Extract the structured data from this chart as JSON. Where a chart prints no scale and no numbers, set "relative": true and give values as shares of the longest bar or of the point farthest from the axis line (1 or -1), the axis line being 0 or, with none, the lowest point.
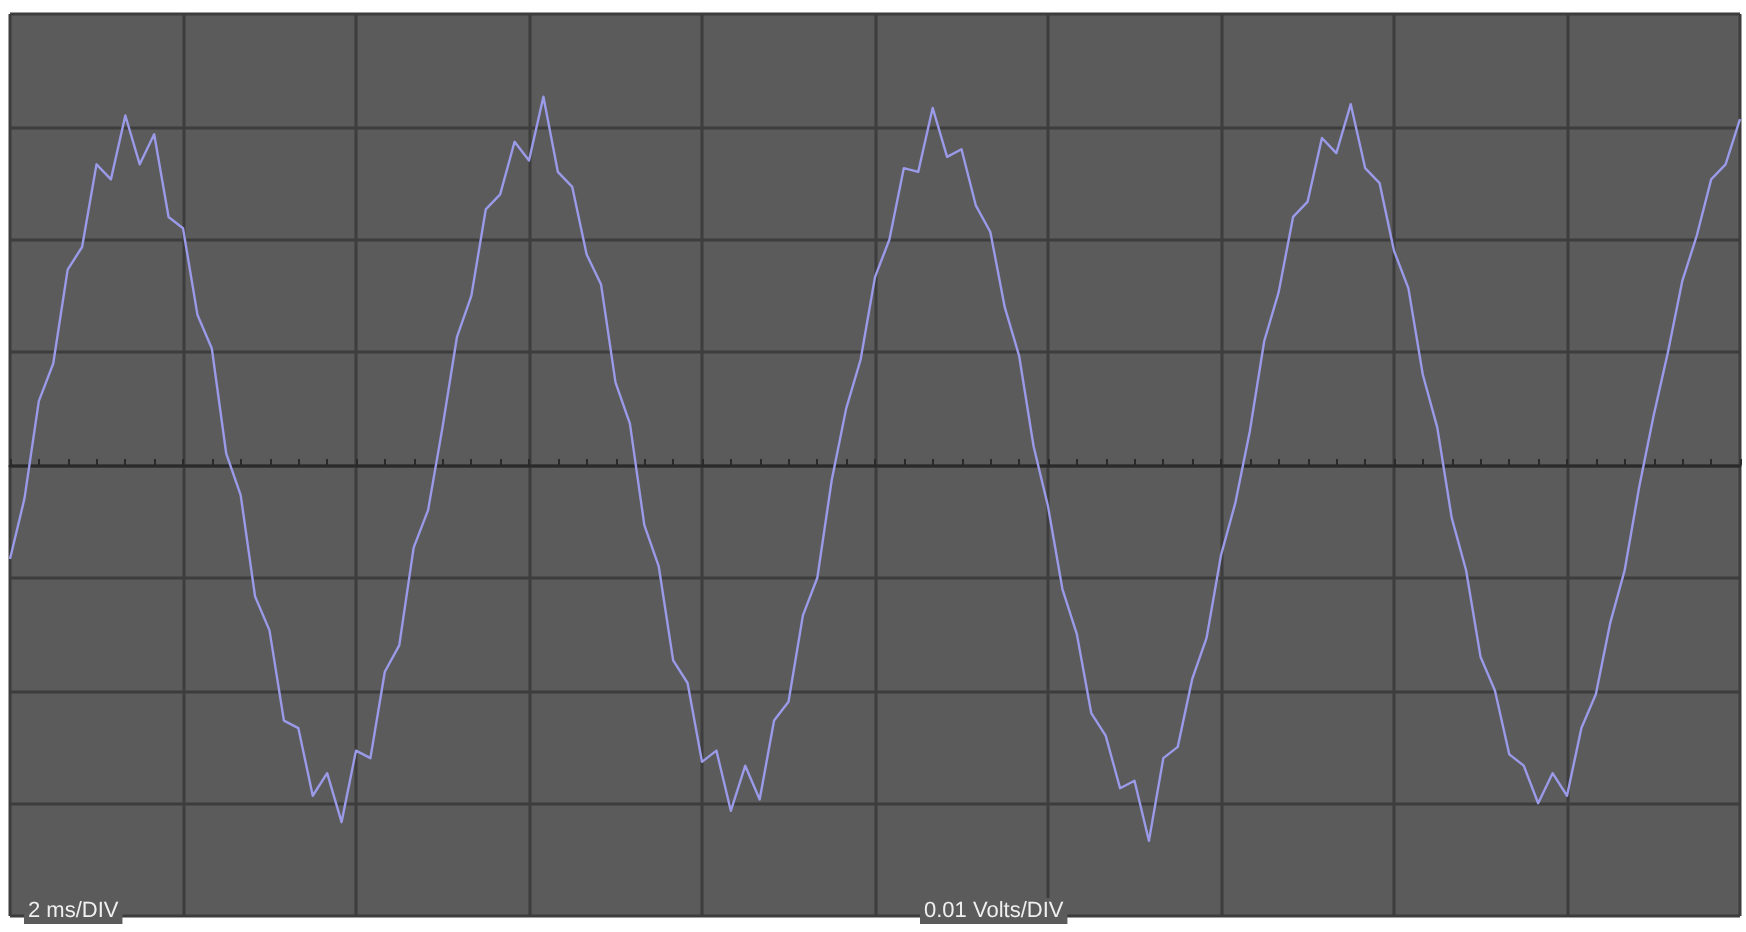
{
  "chart_data": {
    "type": "line",
    "relative": true,
    "color": "#9a9ae8",
    "grid": true,
    "line_style": "solid",
    "annotations": [
      "2 ms/DIV",
      "0.01 Volts/DIV"
    ],
    "categories": [
      null,
      null,
      null,
      null,
      null,
      null,
      null,
      null,
      null,
      null,
      null,
      null,
      null,
      null,
      null,
      null,
      null,
      null,
      null,
      null,
      null,
      null,
      null,
      null,
      null,
      null,
      null,
      null,
      null,
      null,
      null,
      null,
      null,
      null,
      null,
      null,
      null,
      null,
      null,
      null,
      null,
      null,
      null,
      null,
      null,
      null,
      null,
      null,
      null,
      null,
      null,
      null,
      null,
      null,
      null,
      null,
      null,
      null,
      null,
      null,
      null,
      null,
      null,
      null,
      null,
      null,
      null,
      null,
      null,
      null,
      null,
      null,
      null,
      null,
      null,
      null,
      null,
      null,
      null,
      null,
      null,
      null,
      null,
      null,
      null,
      null,
      null,
      null,
      null,
      null,
      null,
      null,
      null,
      null,
      null,
      null,
      null,
      null,
      null,
      null,
      null,
      null,
      null,
      null,
      null,
      null,
      null,
      null,
      null,
      null,
      null,
      null,
      null,
      null,
      null,
      null,
      null,
      null,
      null,
      null,
      null
    ],
    "values": [
      -0.25,
      -0.09,
      0.17,
      0.27,
      0.52,
      0.58,
      0.8,
      0.76,
      0.93,
      0.8,
      0.88,
      0.66,
      0.63,
      0.4,
      0.31,
      0.03,
      -0.08,
      -0.35,
      -0.44,
      -0.68,
      -0.7,
      -0.88,
      -0.82,
      -0.95,
      -0.76,
      -0.78,
      -0.55,
      -0.48,
      -0.22,
      -0.12,
      0.1,
      0.34,
      0.45,
      0.68,
      0.72,
      0.86,
      0.81,
      0.98,
      0.78,
      0.74,
      0.56,
      0.48,
      0.22,
      0.11,
      -0.16,
      -0.27,
      -0.52,
      -0.58,
      -0.79,
      -0.76,
      -0.92,
      -0.8,
      -0.89,
      -0.68,
      -0.63,
      -0.4,
      -0.3,
      -0.04,
      0.15,
      0.28,
      0.5,
      0.6,
      0.79,
      0.78,
      0.95,
      0.82,
      0.84,
      0.69,
      0.62,
      0.42,
      0.29,
      0.05,
      -0.11,
      -0.33,
      -0.45,
      -0.66,
      -0.72,
      -0.86,
      -0.84,
      -1,
      -0.78,
      -0.75,
      -0.57,
      -0.46,
      -0.24,
      -0.1,
      0.09,
      0.33,
      0.46,
      0.66,
      0.7,
      0.87,
      0.83,
      0.96,
      0.79,
      0.75,
      0.57,
      0.47,
      0.24,
      0.1,
      -0.14,
      -0.28,
      -0.51,
      -0.6,
      -0.77,
      -0.8,
      -0.9,
      -0.82,
      -0.88,
      -0.7,
      -0.61,
      -0.42,
      -0.28,
      -0.06,
      0.13,
      0.3,
      0.49,
      0.61,
      0.76,
      0.8,
      0.92
    ]
  }
}
